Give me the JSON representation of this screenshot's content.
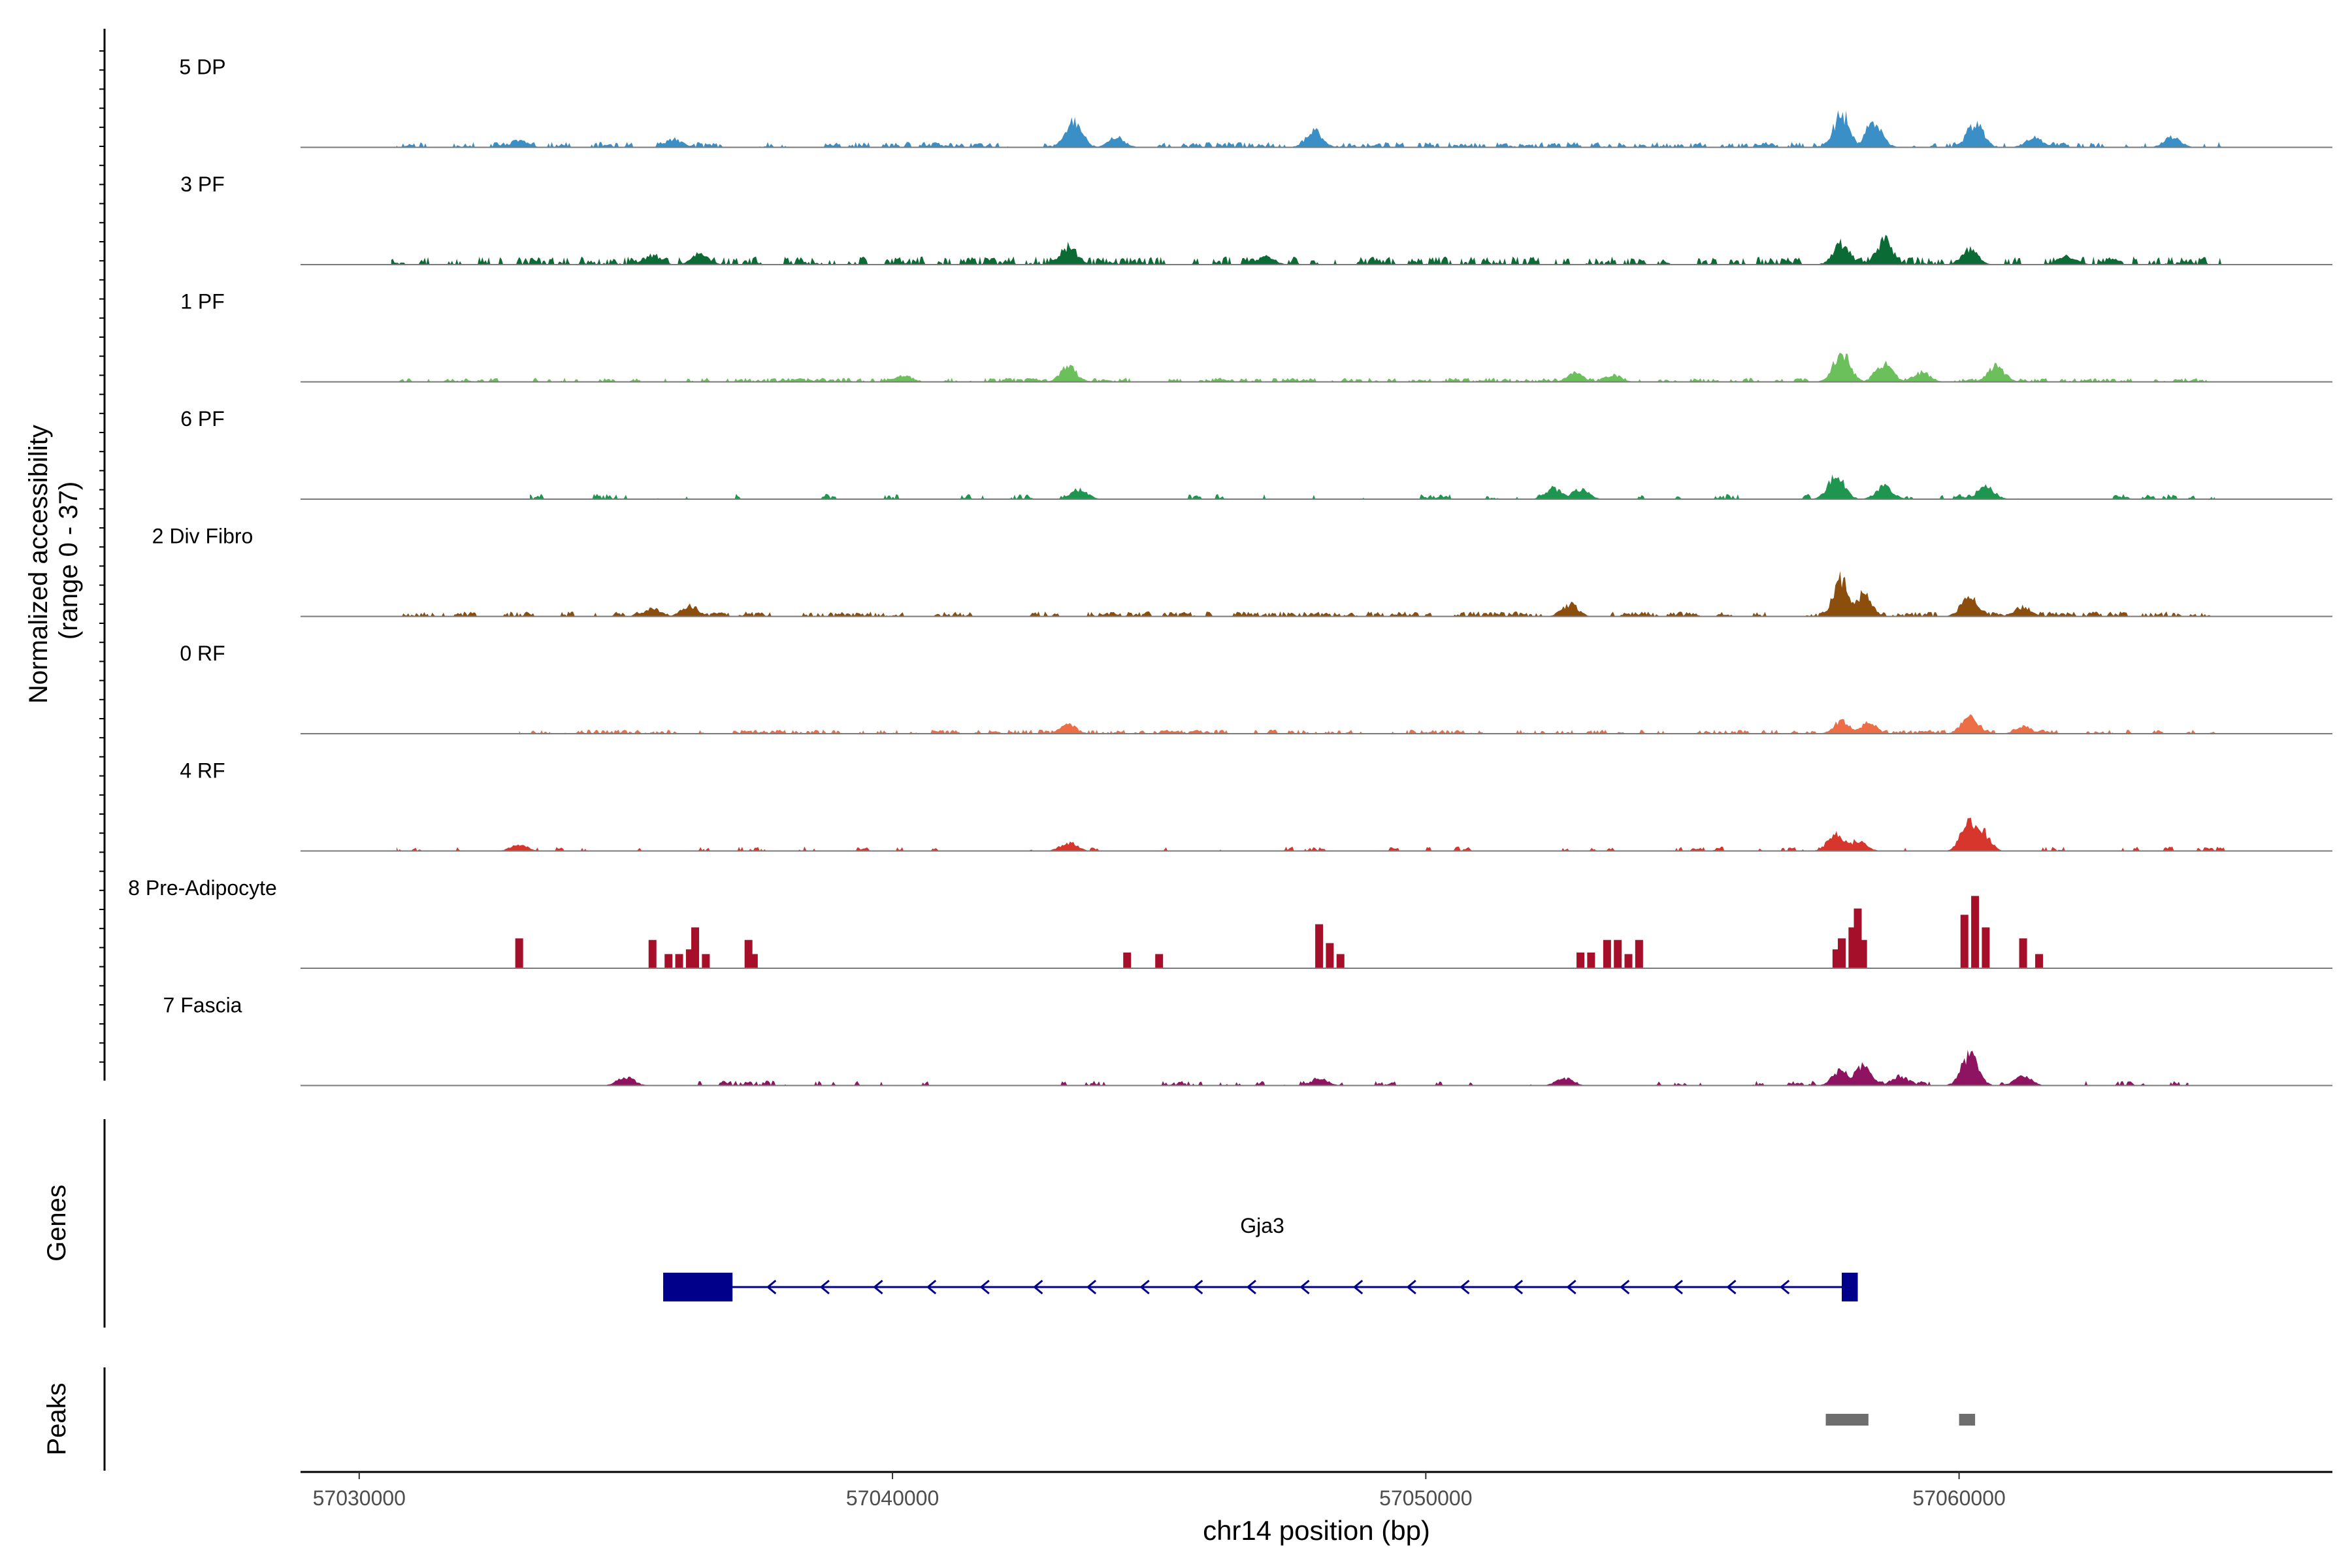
{
  "chart_data": {
    "type": "area",
    "title": "",
    "ylabel_line1": "Normalized accessibility",
    "ylabel_line2": "(range 0 - 37)",
    "ylim": [
      0,
      37
    ],
    "xlabel": "chr14 position (bp)",
    "xlim": [
      57028900,
      57067000
    ],
    "x_ticks": [
      57030000,
      57040000,
      57050000,
      57060000
    ],
    "x_tick_labels": [
      "57030000",
      "57040000",
      "57050000",
      "57060000"
    ],
    "genes_label": "Genes",
    "peaks_label": "Peaks",
    "tracks": [
      {
        "name": "5 DP",
        "color": "#3A8FC7",
        "style": "dense",
        "seed": 11,
        "start": 57030700,
        "end": 57065000,
        "noise": 1.7,
        "peaks": [
          [
            57033000,
            3.0
          ],
          [
            57035900,
            3.5
          ],
          [
            57043400,
            10.5
          ],
          [
            57044200,
            4
          ],
          [
            57047900,
            6.5
          ],
          [
            57057800,
            13.5
          ],
          [
            57058400,
            10
          ],
          [
            57060300,
            9.5
          ],
          [
            57061400,
            4
          ],
          [
            57064000,
            4
          ]
        ]
      },
      {
        "name": "3 PF",
        "color": "#0B6B35",
        "style": "dense",
        "seed": 23,
        "start": 57030600,
        "end": 57065000,
        "noise": 2.6,
        "peaks": [
          [
            57035500,
            4
          ],
          [
            57036400,
            4.5
          ],
          [
            57043300,
            7.5
          ],
          [
            57047000,
            3.5
          ],
          [
            57057800,
            9
          ],
          [
            57058600,
            10
          ],
          [
            57060200,
            6
          ],
          [
            57062000,
            3.5
          ]
        ]
      },
      {
        "name": "1 PF",
        "color": "#6CC05C",
        "style": "dense",
        "seed": 37,
        "start": 57030700,
        "end": 57065000,
        "noise": 1.3,
        "peaks": [
          [
            57040200,
            3
          ],
          [
            57043300,
            6
          ],
          [
            57052800,
            3.5
          ],
          [
            57053500,
            3
          ],
          [
            57057800,
            12.5
          ],
          [
            57058600,
            8
          ],
          [
            57059300,
            4
          ],
          [
            57060700,
            6.5
          ]
        ]
      },
      {
        "name": "6 PF",
        "color": "#1E9650",
        "style": "sparse",
        "seed": 41,
        "start": 57033200,
        "end": 57064800,
        "noise": 1.7,
        "peaks": [
          [
            57043500,
            4
          ],
          [
            57052400,
            4.5
          ],
          [
            57052900,
            4
          ],
          [
            57057700,
            9.5
          ],
          [
            57058600,
            5
          ],
          [
            57060500,
            5.5
          ]
        ]
      },
      {
        "name": "2 Div Fibro",
        "color": "#8B4E0D",
        "style": "dense",
        "seed": 53,
        "start": 57030800,
        "end": 57064800,
        "noise": 1.6,
        "peaks": [
          [
            57035500,
            3
          ],
          [
            57036200,
            4.5
          ],
          [
            57052700,
            5
          ],
          [
            57057800,
            15
          ],
          [
            57058200,
            9
          ],
          [
            57060200,
            8.5
          ],
          [
            57061200,
            4
          ]
        ]
      },
      {
        "name": "0 RF",
        "color": "#EC6E47",
        "style": "dense",
        "seed": 67,
        "start": 57033000,
        "end": 57064800,
        "noise": 1.3,
        "peaks": [
          [
            57043300,
            3.5
          ],
          [
            57057800,
            5
          ],
          [
            57058300,
            4.5
          ],
          [
            57060200,
            7.5
          ],
          [
            57061200,
            3
          ]
        ]
      },
      {
        "name": "4 RF",
        "color": "#D6362B",
        "style": "sparse",
        "seed": 79,
        "start": 57030700,
        "end": 57065000,
        "noise": 1.4,
        "peaks": [
          [
            57033000,
            2.5
          ],
          [
            57043300,
            3.5
          ],
          [
            57057700,
            7
          ],
          [
            57058100,
            4.5
          ],
          [
            57060200,
            12
          ],
          [
            57060400,
            9
          ]
        ]
      },
      {
        "name": "8 Pre-Adipocyte",
        "color": "#A50F2A",
        "style": "spiky",
        "spikes": [
          [
            57033000,
            9.5
          ],
          [
            57035500,
            9
          ],
          [
            57035800,
            4.5
          ],
          [
            57036000,
            4.5
          ],
          [
            57036200,
            6
          ],
          [
            57036300,
            13
          ],
          [
            57036500,
            4.5
          ],
          [
            57037300,
            9
          ],
          [
            57037400,
            4.5
          ],
          [
            57044400,
            5
          ],
          [
            57045000,
            4.5
          ],
          [
            57048000,
            14
          ],
          [
            57048200,
            8
          ],
          [
            57048400,
            4.5
          ],
          [
            57052900,
            5
          ],
          [
            57053100,
            5
          ],
          [
            57053400,
            9
          ],
          [
            57053600,
            9
          ],
          [
            57053800,
            4.5
          ],
          [
            57054000,
            9
          ],
          [
            57057700,
            6
          ],
          [
            57057800,
            9.5
          ],
          [
            57058000,
            13
          ],
          [
            57058100,
            19
          ],
          [
            57058200,
            9
          ],
          [
            57060100,
            17
          ],
          [
            57060300,
            23
          ],
          [
            57060500,
            13
          ],
          [
            57061200,
            9.5
          ],
          [
            57061500,
            4.5
          ]
        ]
      },
      {
        "name": "7 Fascia",
        "color": "#8E1361",
        "style": "sparse",
        "seed": 97,
        "start": 57033400,
        "end": 57064300,
        "noise": 1.5,
        "peaks": [
          [
            57035000,
            3.5
          ],
          [
            57048000,
            3
          ],
          [
            57052600,
            3
          ],
          [
            57057800,
            7
          ],
          [
            57058200,
            8
          ],
          [
            57058900,
            4
          ],
          [
            57060200,
            12.5
          ],
          [
            57061200,
            4
          ]
        ]
      }
    ],
    "gene": {
      "name": "Gjа3",
      "strand": "-",
      "start": 57035700,
      "end": 57058100,
      "exons": [
        [
          57035700,
          57037000
        ],
        [
          57057800,
          57058100
        ]
      ],
      "color": "#00008B"
    },
    "peak_regions": [
      [
        57057500,
        57058300
      ],
      [
        57060000,
        57060300
      ]
    ],
    "peak_color": "#6E6E6E"
  }
}
